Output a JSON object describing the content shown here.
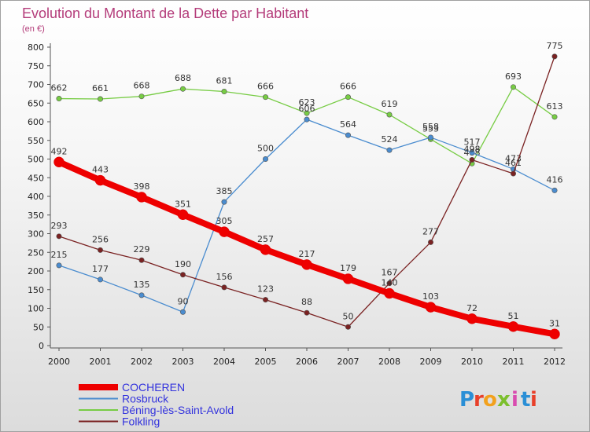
{
  "title": "Evolution du Montant de la Dette par Habitant",
  "unit": "(en €)",
  "logo": {
    "letters": [
      "P",
      "r",
      "o",
      "x",
      "i",
      "t",
      "i"
    ],
    "colors": [
      "#2a8fd6",
      "#e8402a",
      "#f2a11d",
      "#7cbf2d",
      "#d94cb0",
      "#2a8fd6",
      "#e8402a"
    ]
  },
  "chart_data": {
    "type": "line",
    "x": [
      "2000",
      "2001",
      "2002",
      "2003",
      "2004",
      "2005",
      "2006",
      "2007",
      "2008",
      "2009",
      "2010",
      "2011",
      "2012"
    ],
    "ylim": [
      0,
      800
    ],
    "yticks": [
      0,
      50,
      100,
      150,
      200,
      250,
      300,
      350,
      400,
      450,
      500,
      550,
      600,
      650,
      700,
      750,
      800
    ],
    "grid": false,
    "legend": "bottom-left",
    "series": [
      {
        "name": "COCHEREN",
        "color": "#ee0000",
        "values": [
          492,
          443,
          398,
          351,
          305,
          257,
          217,
          179,
          140,
          103,
          72,
          51,
          31
        ]
      },
      {
        "name": "Rosbruck",
        "color": "#4a8ccf",
        "values": [
          215,
          177,
          135,
          90,
          385,
          500,
          606,
          564,
          524,
          558,
          517,
          473,
          416
        ]
      },
      {
        "name": "Béning-lès-Saint-Avold",
        "color": "#77cc44",
        "values": [
          662,
          661,
          668,
          688,
          681,
          666,
          623,
          666,
          619,
          553,
          488,
          693,
          613
        ]
      },
      {
        "name": "Folkling",
        "color": "#7a2222",
        "values": [
          293,
          256,
          229,
          190,
          156,
          123,
          88,
          50,
          167,
          277,
          498,
          461,
          775
        ]
      }
    ]
  }
}
